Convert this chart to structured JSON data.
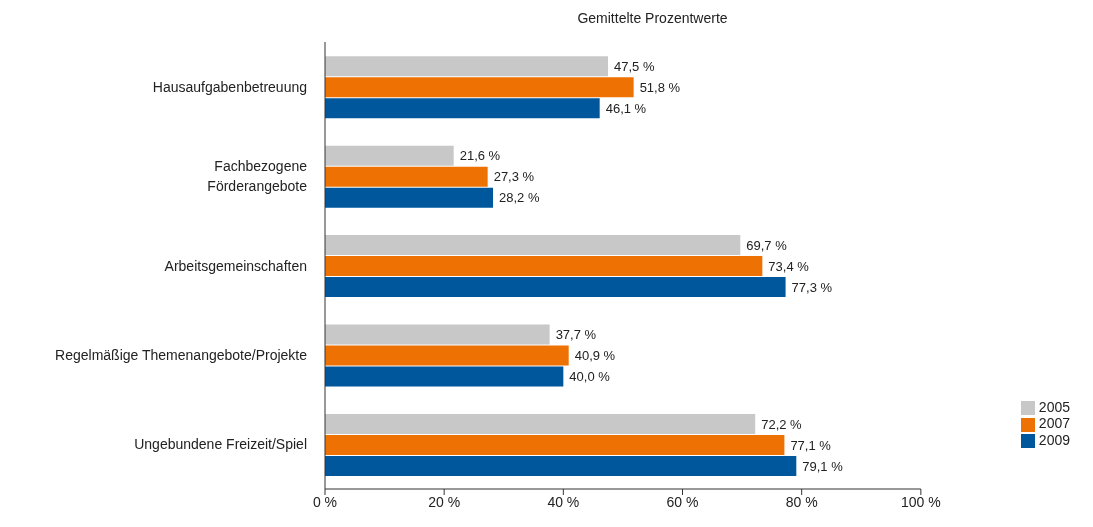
{
  "chart_data": {
    "type": "bar",
    "orientation": "horizontal",
    "title": "Gemittelte Prozentwerte",
    "categories": [
      "Hausaufgabenbetreuung",
      "Fachbezogene\nFörderangebote",
      "Arbeitsgemeinschaften",
      "Regelmäßige Themenangebote/Projekte",
      "Ungebundene Freizeit/Spiel"
    ],
    "series": [
      {
        "name": "2005",
        "color": "#c8c8c8",
        "values": [
          47.5,
          21.6,
          69.7,
          37.7,
          72.2
        ],
        "value_labels": [
          "47,5 %",
          "21,6 %",
          "69,7 %",
          "37,7 %",
          "72,2 %"
        ]
      },
      {
        "name": "2007",
        "color": "#ee7203",
        "values": [
          51.8,
          27.3,
          73.4,
          40.9,
          77.1
        ],
        "value_labels": [
          "51,8 %",
          "27,3 %",
          "73,4 %",
          "40,9 %",
          "77,1 %"
        ]
      },
      {
        "name": "2009",
        "color": "#00579c",
        "values": [
          46.1,
          28.2,
          77.3,
          40.0,
          79.1
        ],
        "value_labels": [
          "46,1 %",
          "28,2 %",
          "77,3 %",
          "40,0 %",
          "79,1 %"
        ]
      }
    ],
    "xlim": [
      0,
      100
    ],
    "xticks": [
      {
        "value": 0,
        "label": "0 %"
      },
      {
        "value": 20,
        "label": "20 %"
      },
      {
        "value": 40,
        "label": "40 %"
      },
      {
        "value": 60,
        "label": "60 %"
      },
      {
        "value": 80,
        "label": "80 %"
      },
      {
        "value": 100,
        "label": "100 %"
      }
    ],
    "grid": false,
    "legend": "right"
  }
}
